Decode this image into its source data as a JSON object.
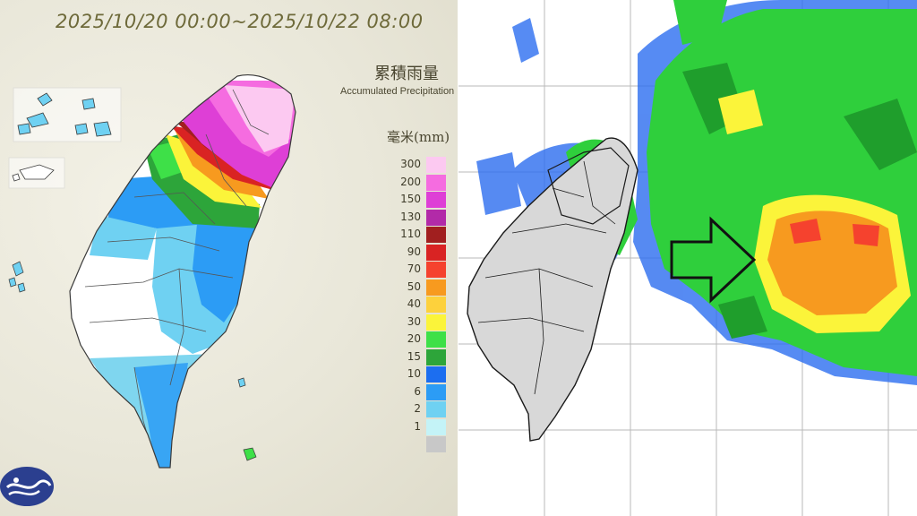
{
  "left_map": {
    "title": "2025/10/20 00:00~2025/10/22 08:00",
    "legend_title_zh": "累積雨量",
    "legend_title_en": "Accumulated Precipitation",
    "legend_unit": "毫米(mm)",
    "legend": [
      {
        "value": "300",
        "color": "#fcc9f1"
      },
      {
        "value": "200",
        "color": "#f56ce0"
      },
      {
        "value": "150",
        "color": "#de3fd6"
      },
      {
        "value": "130",
        "color": "#b22aa8"
      },
      {
        "value": "110",
        "color": "#a11f1f"
      },
      {
        "value": "90",
        "color": "#d92323"
      },
      {
        "value": "70",
        "color": "#f5422e"
      },
      {
        "value": "50",
        "color": "#f79a1f"
      },
      {
        "value": "40",
        "color": "#fdd13c"
      },
      {
        "value": "30",
        "color": "#fbf43a"
      },
      {
        "value": "20",
        "color": "#3ee048"
      },
      {
        "value": "15",
        "color": "#2da53a"
      },
      {
        "value": "10",
        "color": "#1c6ef0"
      },
      {
        "value": "6",
        "color": "#2c9cf5"
      },
      {
        "value": "2",
        "color": "#6fd1f2"
      },
      {
        "value": "1",
        "color": "#c4f3f7"
      },
      {
        "value": "",
        "color": "#c8c8c8"
      }
    ]
  },
  "right_map": {
    "arrow_direction": "east"
  },
  "colors": {
    "land_grey": "#d8d8d8",
    "outline": "#1a1a1a",
    "grid": "#b9b9b9",
    "logo": "#2b3f8f"
  },
  "icons": {
    "agency_logo": "cwa-logo-icon",
    "movement_arrow": "right-arrow-icon"
  }
}
